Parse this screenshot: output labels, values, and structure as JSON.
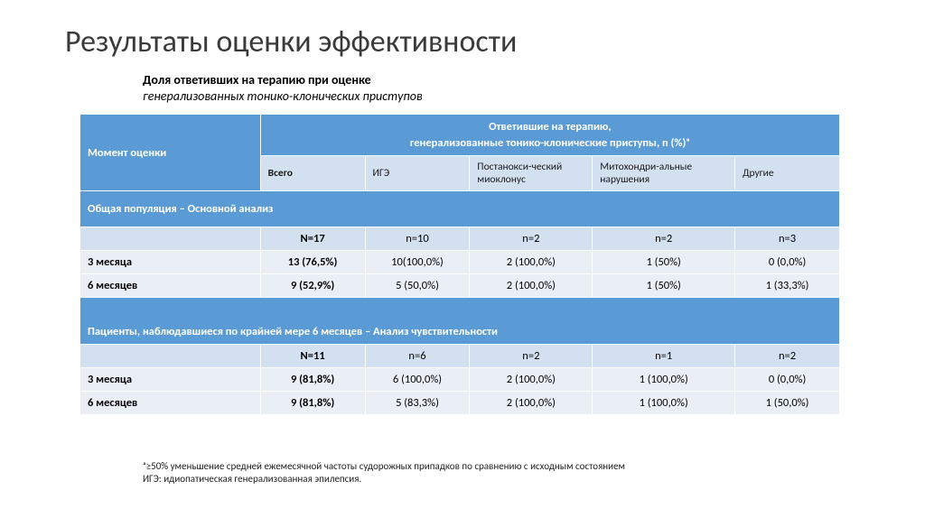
{
  "title": "Результаты оценки эффективности",
  "subtitle": {
    "line1": "Доля ответивших на терапию при оценке",
    "line2": "генерализованных тонико-клонических приступов"
  },
  "table": {
    "header": {
      "col1": "Момент оценки",
      "col_span_line1": "Ответившие на терапию,",
      "col_span_line2": "генерализованные тонико-клонические приступы, n (%)ᵃ",
      "sub": {
        "total": "Всего",
        "ige": "ИГЭ",
        "postanoxic": "Постанокси-ческий миоклонус",
        "mito": "Митохондри-альные нарушения",
        "other": "Другие"
      }
    },
    "section1": "Общая популяция – Основной анализ",
    "n1": {
      "total": "N=17",
      "ige": "n=10",
      "post": "n=2",
      "mito": "n=2",
      "other": "n=3"
    },
    "s1r1": {
      "label": "3 месяца",
      "total": "13 (76,5%)",
      "ige": "10(100,0%)",
      "post": "2 (100,0%)",
      "mito": "1 (50%)",
      "other": "0 (0,0%)"
    },
    "s1r2": {
      "label": "6 месяцев",
      "total": "9 (52,9%)",
      "ige": "5 (50,0%)",
      "post": "2 (100,0%)",
      "mito": "1 (50%)",
      "other": "1 (33,3%)"
    },
    "section2": "Пациенты, наблюдавшиеся по крайней мере 6 месяцев – Анализ чувствительности",
    "n2": {
      "total": "N=11",
      "ige": "n=6",
      "post": "n=2",
      "mito": "n=1",
      "other": "n=2"
    },
    "s2r1": {
      "label": "3 месяца",
      "total": "9 (81,8%)",
      "ige": "6 (100,0%)",
      "post": "2 (100,0%)",
      "mito": "1 (100,0%)",
      "other": "0 (0,0%)"
    },
    "s2r2": {
      "label": "6 месяцев",
      "total": "9 (81,8%)",
      "ige": "5 (83,3%)",
      "post": "2 (100,0%)",
      "mito": "1 (100,0%)",
      "other": "1 (50,0%)"
    }
  },
  "footnotes": {
    "f1": "ᵃ≥50% уменьшение средней ежемесячной частоты судорожных припадков по сравнению с исходным состоянием",
    "f2": "ИГЭ: идиопатическая генерализованная эпилепсия."
  },
  "colors": {
    "header_bg": "#5b9bd5",
    "subheader_bg": "#d2e0ef",
    "row_bg": "#eaeff6",
    "border": "#ffffff",
    "title_color": "#3a3a3a"
  }
}
